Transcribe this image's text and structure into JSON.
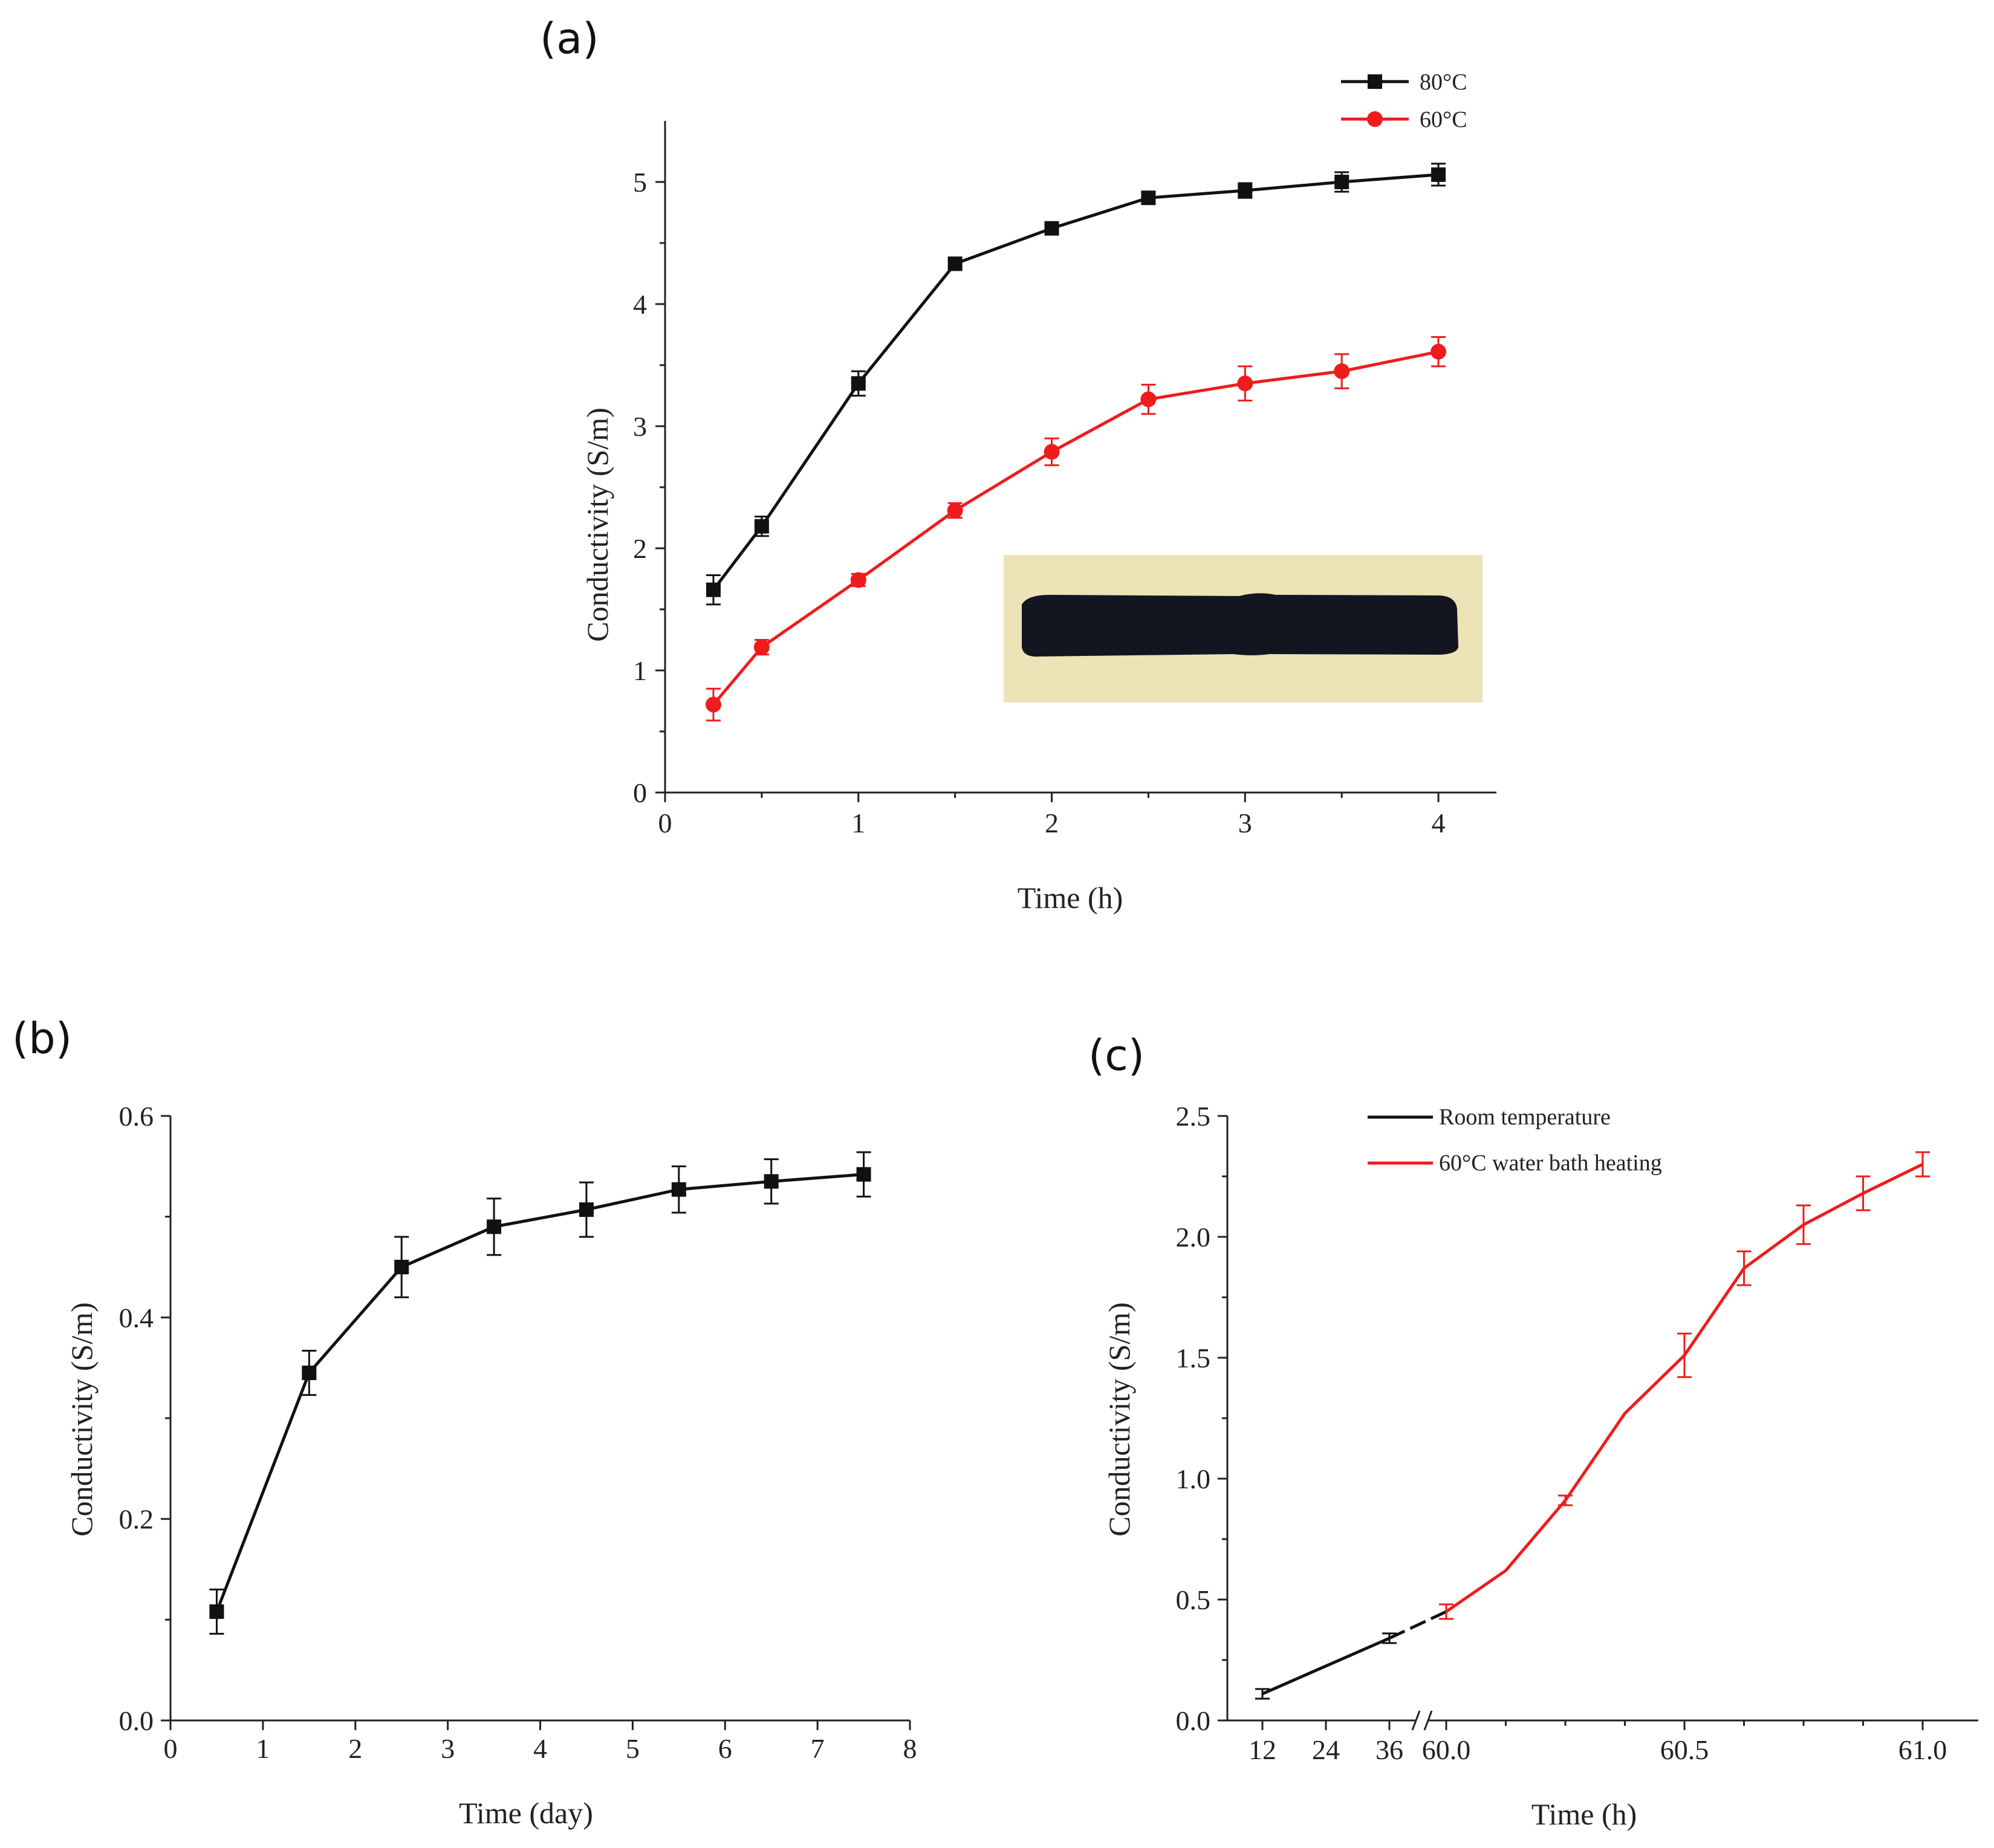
{
  "colors": {
    "black": "#111111",
    "red": "#ee1c1c",
    "inset_bg": "#ece3b6",
    "inset_strip": "#131620"
  },
  "chart_data": [
    {
      "panel_label": "(a)",
      "type": "line",
      "xlabel": "Time (h)",
      "ylabel": "Conductivity (S/m)",
      "xlim": [
        0,
        4.3
      ],
      "ylim": [
        0,
        5.5
      ],
      "xticks": [
        0,
        1,
        2,
        3,
        4
      ],
      "yticks": [
        0,
        1,
        2,
        3,
        4,
        5
      ],
      "legend_position": "top-right",
      "inset": "photo of black conductive strip on beige background",
      "series": [
        {
          "name": "80°C",
          "color": "#111111",
          "marker": "square",
          "x": [
            0.25,
            0.5,
            1,
            1.5,
            2,
            2.5,
            3,
            3.5,
            4
          ],
          "y": [
            1.66,
            2.18,
            3.35,
            4.33,
            4.62,
            4.87,
            4.93,
            5.0,
            5.06
          ],
          "err": [
            0.12,
            0.08,
            0.1,
            0.03,
            0.03,
            0.05,
            0.06,
            0.08,
            0.09
          ]
        },
        {
          "name": "60°C",
          "color": "#ee1c1c",
          "marker": "circle",
          "x": [
            0.25,
            0.5,
            1,
            1.5,
            2,
            2.5,
            3,
            3.5,
            4
          ],
          "y": [
            0.72,
            1.19,
            1.74,
            2.31,
            2.79,
            3.22,
            3.35,
            3.45,
            3.61
          ],
          "err": [
            0.13,
            0.06,
            0.05,
            0.06,
            0.11,
            0.12,
            0.14,
            0.14,
            0.12
          ]
        }
      ]
    },
    {
      "panel_label": "(b)",
      "type": "line",
      "xlabel": "Time (day)",
      "ylabel": "Conductivity (S/m)",
      "xlim": [
        0,
        8
      ],
      "ylim": [
        0,
        0.6
      ],
      "xticks": [
        0,
        1,
        2,
        3,
        4,
        5,
        6,
        7,
        8
      ],
      "yticks": [
        "0.0",
        "0.2",
        "0.4",
        "0.6"
      ],
      "series": [
        {
          "color": "#111111",
          "marker": "square",
          "x": [
            0.5,
            1.5,
            2.5,
            3.5,
            4.5,
            5.5,
            6.5,
            7.5
          ],
          "y": [
            0.108,
            0.345,
            0.45,
            0.49,
            0.507,
            0.527,
            0.535,
            0.542
          ],
          "err": [
            0.022,
            0.022,
            0.03,
            0.028,
            0.027,
            0.023,
            0.022,
            0.022
          ]
        }
      ]
    },
    {
      "panel_label": "(c)",
      "type": "line",
      "xlabel": "Time (h)",
      "ylabel": "Conductivity (S/m)",
      "ylim": [
        0,
        2.5
      ],
      "yticks": [
        "0.0",
        "0.5",
        "1.0",
        "1.5",
        "2.0",
        "2.5"
      ],
      "x_axis_broken": true,
      "xticks_left_segment": [
        "12",
        "24",
        "36"
      ],
      "xticks_right_segment": [
        "60.0",
        "60.5",
        "61.0"
      ],
      "legend_position": "top-left",
      "series": [
        {
          "name": "Room temperature",
          "color": "#111111",
          "x": [
            12,
            36
          ],
          "y": [
            0.11,
            0.34
          ],
          "err": [
            0.02,
            0.02
          ]
        },
        {
          "name": "60°C water bath heating",
          "color": "#ee1c1c",
          "x": [
            60.0,
            60.125,
            60.25,
            60.375,
            60.5,
            60.625,
            60.75,
            60.875,
            61.0
          ],
          "y": [
            0.45,
            0.62,
            0.91,
            1.27,
            1.51,
            1.87,
            2.05,
            2.18,
            2.3
          ],
          "err": [
            0.03,
            null,
            0.02,
            null,
            0.09,
            0.07,
            0.08,
            0.07,
            0.05
          ]
        }
      ]
    }
  ]
}
